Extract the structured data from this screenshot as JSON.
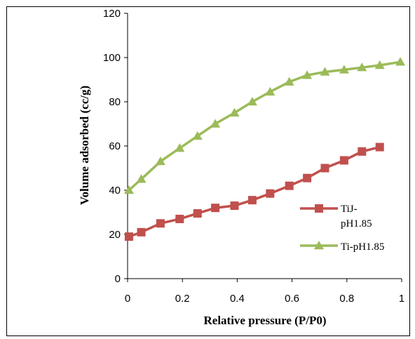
{
  "chart_data": {
    "type": "line",
    "xlabel": "Relative pressure (P/P0)",
    "ylabel": "Volume  adsorbed (cc/g)",
    "xlim": [
      0,
      1
    ],
    "ylim": [
      0,
      120
    ],
    "x_ticks": [
      "0",
      "0.2",
      "0.4",
      "0.6",
      "0.8",
      "1"
    ],
    "y_ticks": [
      "0",
      "20",
      "40",
      "60",
      "80",
      "100",
      "120"
    ],
    "x_tick_values": [
      0,
      0.2,
      0.4,
      0.6,
      0.8,
      1
    ],
    "y_tick_values": [
      0,
      20,
      40,
      60,
      80,
      100,
      120
    ],
    "grid": false,
    "legend_position": "right",
    "series": [
      {
        "name": "TiJ-pH1.85",
        "legend_lines": [
          "TiJ-",
          "pH1.85"
        ],
        "marker": "square",
        "color": "#C0504D",
        "x": [
          0.005,
          0.05,
          0.12,
          0.19,
          0.255,
          0.32,
          0.39,
          0.455,
          0.52,
          0.59,
          0.655,
          0.72,
          0.79,
          0.855,
          0.92
        ],
        "y": [
          19,
          21,
          25,
          27,
          29.5,
          32,
          33,
          35.5,
          38.5,
          42,
          45.5,
          50,
          53.5,
          57.5,
          59.5
        ]
      },
      {
        "name": "Ti-pH1.85",
        "marker": "triangle",
        "color": "#9BBB59",
        "x": [
          0.005,
          0.05,
          0.12,
          0.19,
          0.255,
          0.32,
          0.39,
          0.455,
          0.52,
          0.59,
          0.655,
          0.72,
          0.79,
          0.855,
          0.92,
          0.995
        ],
        "y": [
          40,
          45,
          53,
          59,
          64.5,
          70,
          75,
          80,
          84.5,
          89,
          92,
          93.5,
          94.5,
          95.5,
          96.5,
          98
        ]
      }
    ]
  }
}
